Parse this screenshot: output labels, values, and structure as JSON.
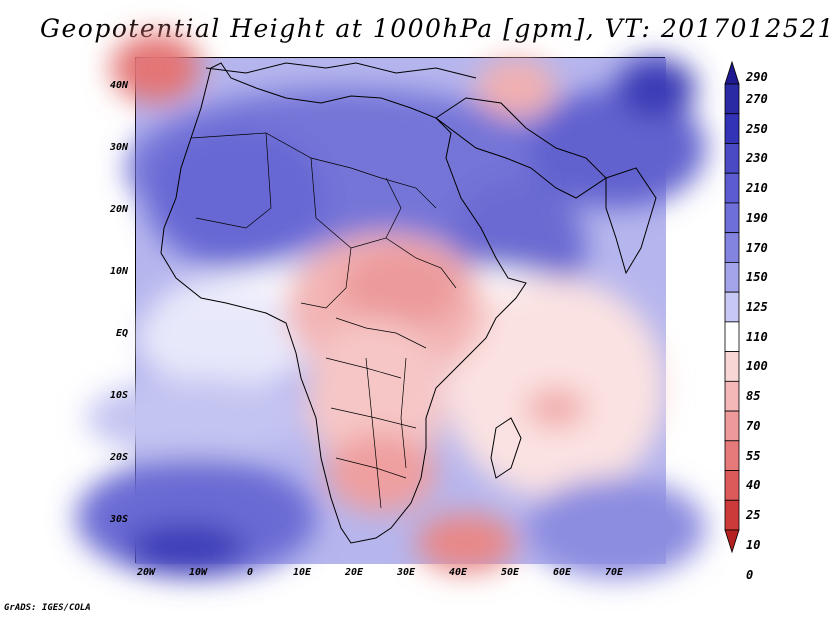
{
  "title": "Geopotential Height at 1000hPa [gpm], VT: 2017012521",
  "credit": "GrADS: IGES/COLA",
  "map": {
    "lon_range": [
      -20,
      80
    ],
    "lat_range": [
      -37,
      45
    ],
    "lat_labels": [
      "40N",
      "30N",
      "20N",
      "10N",
      "EQ",
      "10S",
      "20S",
      "30S"
    ],
    "lon_labels": [
      "20W",
      "10W",
      "0",
      "10E",
      "20E",
      "30E",
      "40E",
      "50E",
      "60E",
      "70E"
    ]
  },
  "colorbar": {
    "levels": [
      "290",
      "270",
      "250",
      "230",
      "210",
      "190",
      "170",
      "150",
      "125",
      "110",
      "100",
      "85",
      "70",
      "55",
      "40",
      "25",
      "10",
      "0"
    ],
    "colors": [
      "#1f1a8f",
      "#2a2aa5",
      "#3333b8",
      "#4a4ac4",
      "#5c5cd0",
      "#6f6fd9",
      "#8383e0",
      "#a4a4ea",
      "#c8c8f4",
      "#ffffff",
      "#f8d6d6",
      "#f4b8b8",
      "#ee9a9a",
      "#e67a7a",
      "#dc5a5a",
      "#cc3a3a",
      "#b52121"
    ]
  }
}
